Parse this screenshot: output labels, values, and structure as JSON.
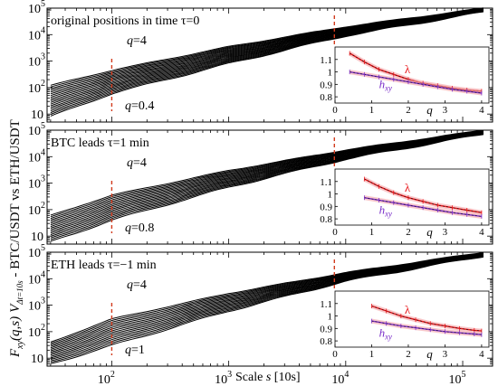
{
  "figure": {
    "ylabel_main": "F",
    "ylabel_main_sub": "xy",
    "ylabel_args": "(q,s)",
    "ylabel_v": "V",
    "ylabel_v_sub": "Δt=10s",
    "ylabel_tail": " - BTC/USDT vs ETH/USDT",
    "xlabel_pre": "Scale ",
    "xlabel_s": "s",
    "xlabel_post": " [10s]",
    "x_tick_labels": [
      "10",
      "10",
      "10",
      "10"
    ],
    "x_tick_exponents": [
      "2",
      "3",
      "4",
      "5"
    ],
    "y_tick_labels": [
      "10",
      "10",
      "10",
      "10",
      "10"
    ],
    "y_tick_exponents": [
      "",
      "2",
      "3",
      "4",
      "5"
    ]
  },
  "colors": {
    "curves": "#000000",
    "marker": "#d23b1e",
    "lambda": "#e8161a",
    "hxy": "#7b2fc9",
    "fit": "#111111",
    "error_band": "#f3a3a6"
  },
  "chart_data": [
    {
      "type": "line",
      "panel": "top",
      "annotation": "original positions in time τ=0",
      "q_top_label": "q=4",
      "q_bottom_label": "q=0.4",
      "xscale": "log",
      "yscale": "log",
      "xlim": [
        28,
        180000
      ],
      "ylim": [
        5,
        100000
      ],
      "marker_scales": [
        100,
        8000
      ],
      "q_values": [
        0.4,
        0.6,
        0.8,
        1.0,
        1.2,
        1.4,
        1.6,
        1.8,
        2.0,
        2.2,
        2.4,
        2.6,
        2.8,
        3.0,
        3.2,
        3.4,
        3.6,
        3.8,
        4.0
      ],
      "series_endpoints": {
        "s": [
          30,
          100,
          1000,
          10000,
          150000
        ],
        "F_q4": [
          120,
          450,
          3500,
          20000,
          100000
        ],
        "F_q0_4": [
          8,
          60,
          800,
          9000,
          70000
        ]
      },
      "inset": {
        "xlim": [
          0,
          4.2
        ],
        "ylim": [
          0.75,
          1.2
        ],
        "xticks": [
          "0",
          "1",
          "2",
          "3",
          "4"
        ],
        "yticks": [
          "0.8",
          "0.9",
          "1",
          "1.1"
        ],
        "xlabel": "q",
        "series": [
          {
            "name": "λ",
            "q": [
              0.4,
              0.8,
              1.2,
              1.6,
              2.0,
              2.4,
              2.8,
              3.2,
              3.6,
              4.0
            ],
            "values": [
              1.15,
              1.08,
              1.02,
              0.98,
              0.94,
              0.91,
              0.89,
              0.87,
              0.855,
              0.845
            ]
          },
          {
            "name": "h",
            "name_sub": "xy",
            "q": [
              0.4,
              0.8,
              1.2,
              1.6,
              2.0,
              2.4,
              2.8,
              3.2,
              3.6,
              4.0
            ],
            "values": [
              1.0,
              0.98,
              0.96,
              0.94,
              0.92,
              0.9,
              0.88,
              0.86,
              0.845,
              0.83
            ]
          }
        ]
      }
    },
    {
      "type": "line",
      "panel": "middle",
      "annotation": "BTC leads τ=1 min",
      "q_top_label": "q=4",
      "q_bottom_label": "q=0.8",
      "xscale": "log",
      "yscale": "log",
      "xlim": [
        28,
        180000
      ],
      "ylim": [
        5,
        100000
      ],
      "marker_scales": [
        100,
        8000
      ],
      "q_values": [
        0.8,
        1.0,
        1.2,
        1.4,
        1.6,
        1.8,
        2.0,
        2.2,
        2.4,
        2.6,
        2.8,
        3.0,
        3.2,
        3.4,
        3.6,
        3.8,
        4.0
      ],
      "series_endpoints": {
        "s": [
          30,
          100,
          1000,
          10000,
          150000
        ],
        "F_q4": [
          60,
          350,
          3000,
          18000,
          100000
        ],
        "F_q0_8": [
          6,
          40,
          700,
          8000,
          70000
        ]
      },
      "inset": {
        "xlim": [
          0,
          4.2
        ],
        "ylim": [
          0.75,
          1.2
        ],
        "xticks": [
          "0",
          "1",
          "2",
          "3",
          "4"
        ],
        "yticks": [
          "0.8",
          "0.9",
          "1",
          "1.1"
        ],
        "xlabel": "q",
        "series": [
          {
            "name": "λ",
            "q": [
              0.8,
              1.2,
              1.6,
              2.0,
              2.4,
              2.8,
              3.2,
              3.6,
              4.0
            ],
            "values": [
              1.12,
              1.06,
              1.01,
              0.97,
              0.94,
              0.91,
              0.89,
              0.87,
              0.85
            ]
          },
          {
            "name": "h",
            "name_sub": "xy",
            "q": [
              0.8,
              1.2,
              1.6,
              2.0,
              2.4,
              2.8,
              3.2,
              3.6,
              4.0
            ],
            "values": [
              0.97,
              0.95,
              0.93,
              0.91,
              0.89,
              0.87,
              0.85,
              0.835,
              0.82
            ]
          }
        ]
      }
    },
    {
      "type": "line",
      "panel": "bottom",
      "annotation": "ETH leads τ=−1 min",
      "q_top_label": "q=4",
      "q_bottom_label": "q=1",
      "xscale": "log",
      "yscale": "log",
      "xlim": [
        28,
        180000
      ],
      "ylim": [
        5,
        100000
      ],
      "marker_scales": [
        100,
        8000
      ],
      "q_values": [
        1.0,
        1.2,
        1.4,
        1.6,
        1.8,
        2.0,
        2.2,
        2.4,
        2.6,
        2.8,
        3.0,
        3.2,
        3.4,
        3.6,
        3.8,
        4.0
      ],
      "series_endpoints": {
        "s": [
          30,
          100,
          1000,
          10000,
          150000
        ],
        "F_q4": [
          40,
          300,
          2800,
          17000,
          100000
        ],
        "F_q1": [
          6,
          30,
          600,
          8000,
          70000
        ]
      },
      "inset": {
        "xlim": [
          0,
          4.2
        ],
        "ylim": [
          0.75,
          1.2
        ],
        "xticks": [
          "0",
          "1",
          "2",
          "3",
          "4"
        ],
        "yticks": [
          "0.8",
          "0.9",
          "1",
          "1.1"
        ],
        "xlabel": "q",
        "series": [
          {
            "name": "λ",
            "q": [
              1.0,
              1.4,
              1.8,
              2.2,
              2.6,
              3.0,
              3.4,
              3.8,
              4.0
            ],
            "values": [
              1.08,
              1.04,
              1.0,
              0.97,
              0.94,
              0.92,
              0.9,
              0.885,
              0.88
            ]
          },
          {
            "name": "h",
            "name_sub": "xy",
            "q": [
              1.0,
              1.4,
              1.8,
              2.2,
              2.6,
              3.0,
              3.4,
              3.8,
              4.0
            ],
            "values": [
              0.96,
              0.94,
              0.92,
              0.905,
              0.89,
              0.875,
              0.865,
              0.855,
              0.85
            ]
          }
        ]
      }
    }
  ]
}
